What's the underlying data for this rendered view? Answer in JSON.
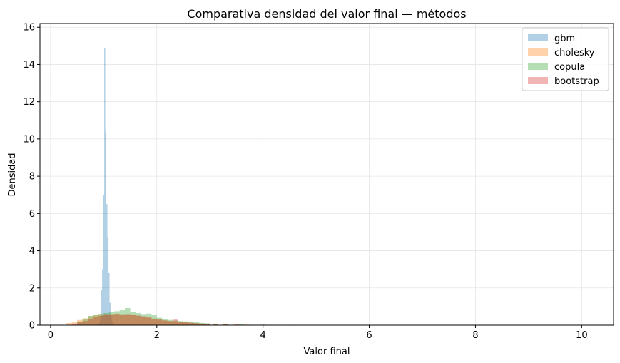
{
  "chart_data": {
    "type": "histogram",
    "title": "Comparativa densidad del valor final — métodos",
    "xlabel": "Valor final",
    "ylabel": "Densidad",
    "xlim": [
      -0.2,
      10.6
    ],
    "ylim": [
      0,
      16.2
    ],
    "xticks": [
      0,
      2,
      4,
      6,
      8,
      10
    ],
    "yticks": [
      0,
      2,
      4,
      6,
      8,
      10,
      12,
      14,
      16
    ],
    "grid": true,
    "legend_position": "top-right",
    "series": [
      {
        "name": "gbm",
        "color": "#1f77b4",
        "bin_width": 0.02,
        "bins": [
          [
            0.92,
            0.1
          ],
          [
            0.94,
            0.3
          ],
          [
            0.96,
            1.9
          ],
          [
            0.98,
            3.0
          ],
          [
            1.0,
            7.0
          ],
          [
            1.02,
            14.9
          ],
          [
            1.04,
            10.4
          ],
          [
            1.06,
            6.5
          ],
          [
            1.08,
            4.7
          ],
          [
            1.1,
            2.8
          ],
          [
            1.12,
            1.2
          ],
          [
            1.14,
            0.5
          ],
          [
            1.16,
            0.2
          ]
        ]
      },
      {
        "name": "cholesky",
        "color": "#ff7f0e",
        "bin_width": 0.1,
        "bins": [
          [
            0.35,
            0.12
          ],
          [
            0.45,
            0.18
          ],
          [
            0.55,
            0.28
          ],
          [
            0.65,
            0.36
          ],
          [
            0.75,
            0.48
          ],
          [
            0.85,
            0.55
          ],
          [
            0.95,
            0.6
          ],
          [
            1.05,
            0.62
          ],
          [
            1.15,
            0.6
          ],
          [
            1.25,
            0.62
          ],
          [
            1.35,
            0.6
          ],
          [
            1.45,
            0.58
          ],
          [
            1.55,
            0.55
          ],
          [
            1.65,
            0.5
          ],
          [
            1.75,
            0.45
          ],
          [
            1.85,
            0.4
          ],
          [
            1.95,
            0.35
          ],
          [
            2.05,
            0.3
          ],
          [
            2.15,
            0.26
          ],
          [
            2.25,
            0.22
          ],
          [
            2.35,
            0.2
          ],
          [
            2.45,
            0.18
          ],
          [
            2.55,
            0.15
          ],
          [
            2.65,
            0.13
          ],
          [
            2.75,
            0.11
          ],
          [
            2.85,
            0.09
          ],
          [
            2.95,
            0.08
          ],
          [
            3.1,
            0.06
          ],
          [
            3.3,
            0.05
          ],
          [
            3.5,
            0.04
          ],
          [
            3.7,
            0.03
          ],
          [
            4.0,
            0.02
          ],
          [
            4.4,
            0.015
          ],
          [
            5.0,
            0.01
          ],
          [
            6.0,
            0.008
          ],
          [
            6.5,
            0.006
          ],
          [
            7.3,
            0.005
          ],
          [
            9.2,
            0.005
          ]
        ]
      },
      {
        "name": "copula",
        "color": "#2ca02c",
        "bin_width": 0.1,
        "bins": [
          [
            0.55,
            0.2
          ],
          [
            0.65,
            0.35
          ],
          [
            0.75,
            0.5
          ],
          [
            0.85,
            0.55
          ],
          [
            0.95,
            0.6
          ],
          [
            1.05,
            0.65
          ],
          [
            1.15,
            0.72
          ],
          [
            1.25,
            0.75
          ],
          [
            1.35,
            0.8
          ],
          [
            1.45,
            0.92
          ],
          [
            1.55,
            0.7
          ],
          [
            1.65,
            0.65
          ],
          [
            1.75,
            0.6
          ],
          [
            1.85,
            0.62
          ],
          [
            1.95,
            0.55
          ],
          [
            2.05,
            0.4
          ],
          [
            2.15,
            0.32
          ],
          [
            2.25,
            0.28
          ],
          [
            2.35,
            0.25
          ],
          [
            2.45,
            0.22
          ],
          [
            2.55,
            0.2
          ],
          [
            2.65,
            0.18
          ],
          [
            2.75,
            0.15
          ],
          [
            2.85,
            0.12
          ],
          [
            2.95,
            0.1
          ],
          [
            3.1,
            0.08
          ],
          [
            3.3,
            0.06
          ],
          [
            3.6,
            0.04
          ],
          [
            4.0,
            0.03
          ],
          [
            4.5,
            0.02
          ],
          [
            5.2,
            0.01
          ]
        ]
      },
      {
        "name": "bootstrap",
        "color": "#d62728",
        "bin_width": 0.1,
        "bins": [
          [
            0.45,
            0.08
          ],
          [
            0.55,
            0.15
          ],
          [
            0.65,
            0.22
          ],
          [
            0.75,
            0.32
          ],
          [
            0.85,
            0.42
          ],
          [
            0.95,
            0.5
          ],
          [
            1.05,
            0.55
          ],
          [
            1.15,
            0.58
          ],
          [
            1.25,
            0.6
          ],
          [
            1.35,
            0.55
          ],
          [
            1.45,
            0.6
          ],
          [
            1.55,
            0.58
          ],
          [
            1.65,
            0.52
          ],
          [
            1.75,
            0.48
          ],
          [
            1.85,
            0.42
          ],
          [
            1.95,
            0.35
          ],
          [
            2.05,
            0.3
          ],
          [
            2.15,
            0.25
          ],
          [
            2.25,
            0.22
          ],
          [
            2.35,
            0.3
          ],
          [
            2.45,
            0.18
          ],
          [
            2.55,
            0.15
          ],
          [
            2.65,
            0.13
          ],
          [
            2.75,
            0.1
          ],
          [
            2.85,
            0.08
          ],
          [
            2.95,
            0.07
          ],
          [
            3.1,
            0.05
          ],
          [
            3.3,
            0.04
          ],
          [
            3.5,
            0.03
          ],
          [
            3.8,
            0.02
          ],
          [
            4.3,
            0.015
          ],
          [
            5.5,
            0.01
          ],
          [
            6.2,
            0.008
          ],
          [
            9.0,
            0.005
          ]
        ]
      }
    ]
  }
}
